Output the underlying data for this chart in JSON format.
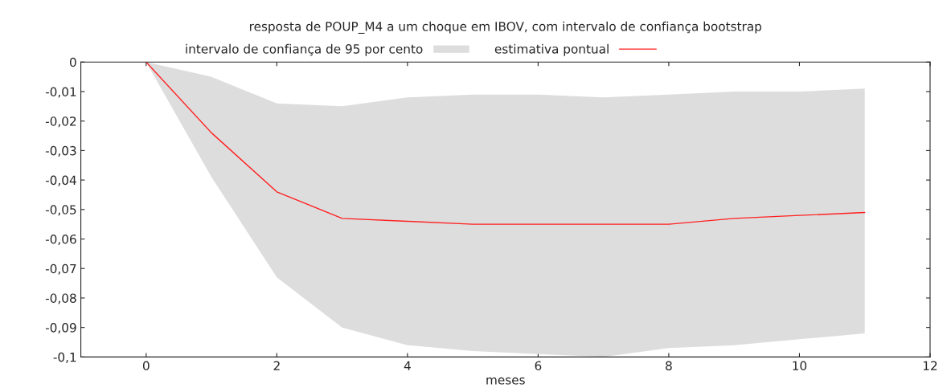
{
  "chart_data": {
    "type": "line",
    "title": "resposta de POUP_M4 a um choque em IBOV, com intervalo de confiança bootstrap",
    "xlabel": "meses",
    "annotations": [
      "intervalo de confiança de 95 por cento"
    ],
    "x": [
      0,
      1,
      2,
      3,
      4,
      5,
      6,
      7,
      8,
      9,
      10,
      11
    ],
    "series": [
      {
        "name": "estimativa pontual",
        "color": "#ff2020",
        "values": [
          0,
          -0.024,
          -0.044,
          -0.053,
          -0.054,
          -0.055,
          -0.055,
          -0.055,
          -0.055,
          -0.053,
          -0.052,
          -0.051
        ],
        "lower": [
          0,
          -0.039,
          -0.073,
          -0.09,
          -0.096,
          -0.098,
          -0.099,
          -0.1,
          -0.097,
          -0.096,
          -0.094,
          -0.092
        ],
        "upper": [
          0,
          -0.005,
          -0.014,
          -0.015,
          -0.012,
          -0.011,
          -0.011,
          -0.012,
          -0.011,
          -0.01,
          -0.01,
          -0.009
        ]
      }
    ],
    "xlim": [
      -1,
      12
    ],
    "xticks": [
      0,
      2,
      4,
      6,
      8,
      10,
      12
    ],
    "ylim": [
      -0.1,
      0
    ],
    "yticks": [
      {
        "value": -0.1,
        "label": "-0,1"
      },
      {
        "value": -0.09,
        "label": "-0,09"
      },
      {
        "value": -0.08,
        "label": "-0,08"
      },
      {
        "value": -0.07,
        "label": "-0,07"
      },
      {
        "value": -0.06,
        "label": "-0,06"
      },
      {
        "value": -0.05,
        "label": "-0,05"
      },
      {
        "value": -0.04,
        "label": "-0,04"
      },
      {
        "value": -0.03,
        "label": "-0,03"
      },
      {
        "value": -0.02,
        "label": "-0,02"
      },
      {
        "value": -0.01,
        "label": "-0,01"
      },
      0
    ],
    "legend": "top",
    "grid": false,
    "marker": "none",
    "line_style": "solid"
  }
}
